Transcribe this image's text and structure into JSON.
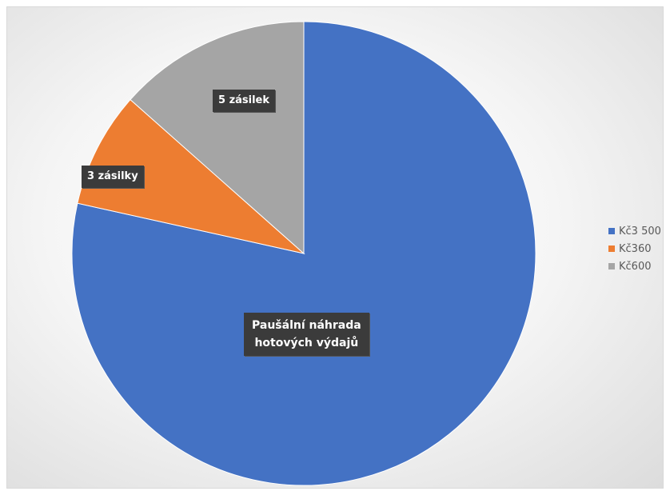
{
  "chart_data": {
    "type": "pie",
    "categories": [
      "Kč3 500",
      "Kč360",
      "Kč600"
    ],
    "values": [
      3500,
      360,
      600
    ],
    "colors": [
      "#4472c4",
      "#ed7d31",
      "#a5a5a5"
    ],
    "data_labels": [
      "Paušální náhrada hotových výdajů",
      "3 zásilky",
      "5 zásilek"
    ],
    "legend_position": "right"
  },
  "labels": {
    "main_line1": "Paušální náhrada",
    "main_line2": "hotových výdajů",
    "slice2": "3 zásilky",
    "slice3": "5 zásilek"
  },
  "legend": [
    {
      "label": "Kč3 500",
      "color": "#4472c4"
    },
    {
      "label": "Kč360",
      "color": "#ed7d31"
    },
    {
      "label": "Kč600",
      "color": "#a5a5a5"
    }
  ]
}
